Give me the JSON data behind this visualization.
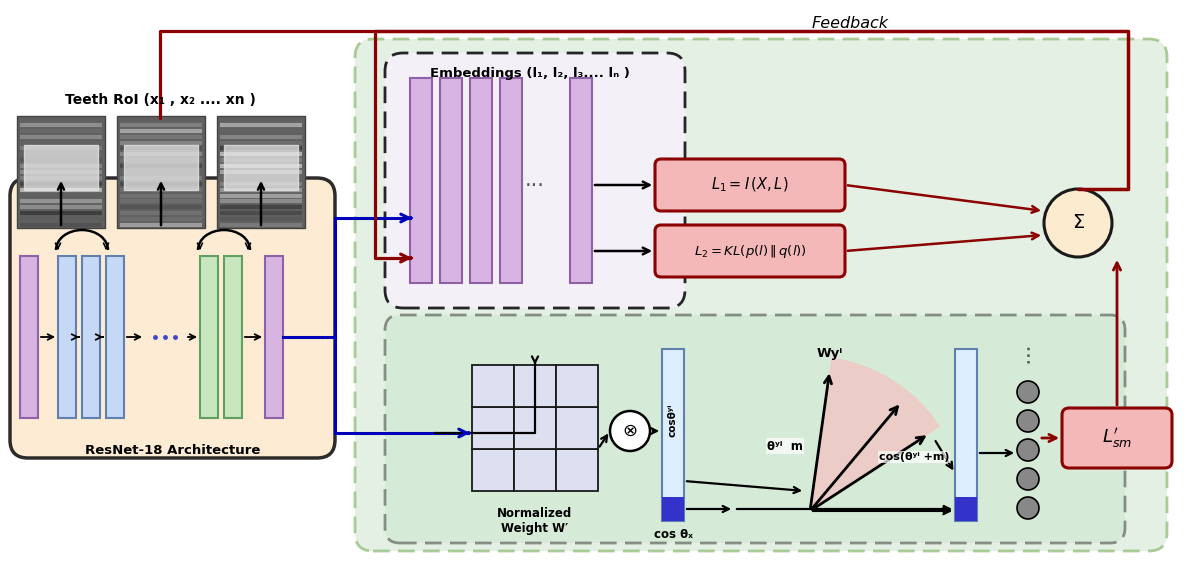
{
  "bg_color": "#ffffff",
  "feedback_text": "Feedback",
  "teeth_roi_text": "Teeth RoI (x₁ , x₂ .... xn )",
  "resnet_text": "ResNet-18 Architecture",
  "embeddings_text": "Embeddings (l₁, l₂, l₃.... lₙ )",
  "l1_formula": "$\\mathit{L_1 = I\\,(X,L)}$",
  "l2_formula": "$\\mathit{L_2 = KL(p(l)\\,\\|\\,q(l))}$",
  "sigma_text": "$\\Sigma$",
  "lsm_formula": "$\\mathit{L_{sm}^{\\prime}}$",
  "wyi_text": "Wyⁱ",
  "cos_theta_yi_text": "cosθʸⁱ",
  "theta_m_text": "θʸⁱ  m",
  "cos_theta_m_text": "cos(θʸⁱ +m)",
  "cos_theta_x_text": "cos θₓ",
  "normalized_text": "Normalized\nWeight W′",
  "orange_fc": "#fdebd0",
  "orange_ec": "#1a1a1a",
  "green_fc": "#d5e8d4",
  "green_ec": "#82b366",
  "embed_inner_fc": "#f5f0fa",
  "embed_inner_ec": "#1a1a1a",
  "lower_inner_fc": "#c8e6c9",
  "lower_inner_ec": "#1a1a1a",
  "red_color": "#8b0000",
  "blue_color": "#0000bb",
  "black_color": "#000000",
  "l_box_fc": "#f4b8b8",
  "l_box_ec": "#8b0000",
  "sigma_fc": "#fdebd0",
  "sigma_ec": "#1a1a1a",
  "lsm_fc": "#f4b8b8",
  "lsm_ec": "#8b0000",
  "purple_fc": "#d8b4e2",
  "purple_ec": "#9060a8",
  "blue_bar_fc": "#c5d8f5",
  "blue_bar_ec": "#6080b0",
  "green_bar_fc": "#c8e6c0",
  "green_bar_ec": "#60a060",
  "grid_fc": "#dde0f0",
  "grid_ec": "#1a1a1a",
  "pink_sector": "#f5c0c0",
  "cos_bar_fc": "#ddeeff",
  "cos_bar_ec": "#6080b0",
  "highlight_blue": "#3333cc",
  "dot_blue": "#4444cc"
}
